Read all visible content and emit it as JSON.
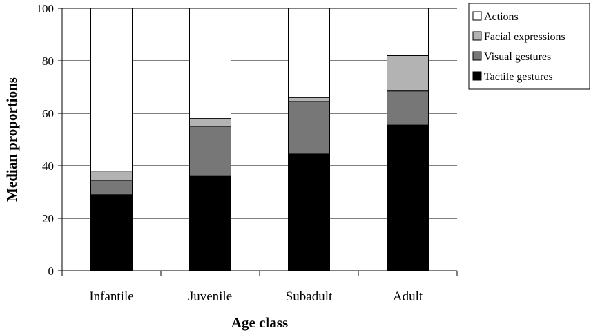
{
  "chart_data": {
    "type": "bar",
    "stacked": true,
    "title": "",
    "xlabel": "Age class",
    "ylabel": "Median proportions",
    "ylim": [
      0,
      100
    ],
    "yticks": [
      0,
      20,
      40,
      60,
      80,
      100
    ],
    "categories": [
      "Infantile",
      "Juvenile",
      "Subadult",
      "Adult"
    ],
    "series": [
      {
        "name": "Tactile gestures",
        "values": [
          29,
          36,
          44.5,
          55.5
        ],
        "color": "#000000"
      },
      {
        "name": "Visual gestures",
        "values": [
          5.5,
          19,
          20,
          13
        ],
        "color": "#777777"
      },
      {
        "name": "Facial expressions",
        "values": [
          3.5,
          3,
          1.5,
          13.5
        ],
        "color": "#b3b3b3"
      },
      {
        "name": "Actions",
        "values": [
          62,
          42,
          34,
          18
        ],
        "color": "#ffffff"
      }
    ],
    "legend_order": [
      "Actions",
      "Facial expressions",
      "Visual gestures",
      "Tactile gestures"
    ],
    "legend_position": "top-right",
    "grid": true
  }
}
